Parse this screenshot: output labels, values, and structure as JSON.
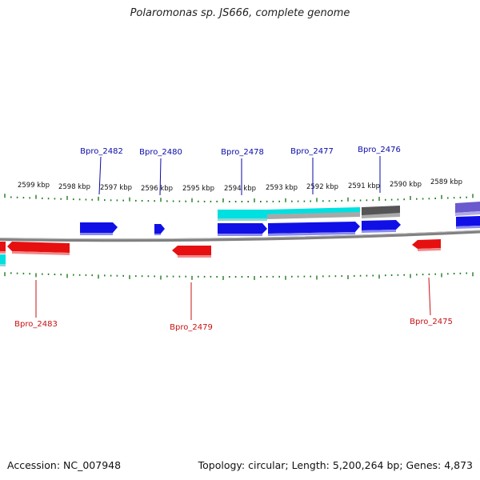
{
  "title": "Polaromonas sp. JS666, complete genome",
  "footer": {
    "accession": "Accession: NC_007948",
    "summary": "Topology: circular; Length: 5,200,264 bp; Genes: 4,873"
  },
  "colors": {
    "forward_gene": "#1010e6",
    "reverse_gene": "#e61010",
    "forward_label": "#0a0aa8",
    "reverse_label": "#c81010",
    "cyan_feature": "#00e5e5",
    "dark_feature": "#555555",
    "purple_feature": "#6a5acd",
    "tick": "#1f7a1f",
    "backbone": "#808080"
  },
  "scale_labels": [
    "2599 kbp",
    "2598 kbp",
    "2597 kbp",
    "2596 kbp",
    "2595 kbp",
    "2594 kbp",
    "2593 kbp",
    "2592 kbp",
    "2591 kbp",
    "2590 kbp",
    "2589 kbp"
  ],
  "forward_labels": [
    "Bpro_2482",
    "Bpro_2480",
    "Bpro_2478",
    "Bpro_2477",
    "Bpro_2476"
  ],
  "reverse_labels": [
    "Bpro_2483",
    "Bpro_2479",
    "Bpro_2475"
  ]
}
